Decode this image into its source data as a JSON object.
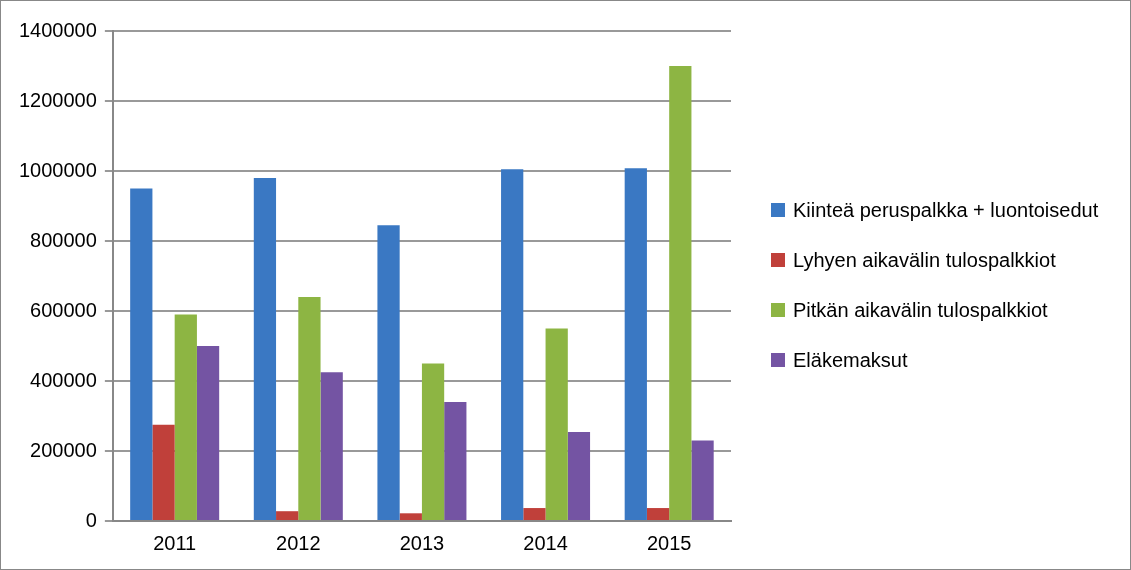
{
  "chart_data": {
    "type": "bar",
    "categories": [
      "2011",
      "2012",
      "2013",
      "2014",
      "2015"
    ],
    "series": [
      {
        "name": "Kiinteä peruspalkka + luontoisedut",
        "color": "#3a78c3",
        "values": [
          950000,
          980000,
          845000,
          1005000,
          1008000
        ]
      },
      {
        "name": "Lyhyen aikavälin tulospalkkiot",
        "color": "#c0403a",
        "values": [
          275000,
          28000,
          22000,
          37000,
          37000
        ]
      },
      {
        "name": "Pitkän aikavälin tulospalkkiot",
        "color": "#8db543",
        "values": [
          590000,
          640000,
          450000,
          550000,
          1300000
        ]
      },
      {
        "name": "Eläkemaksut",
        "color": "#7454a3",
        "values": [
          500000,
          425000,
          340000,
          254000,
          230000
        ]
      }
    ],
    "ylim": [
      0,
      1400000
    ],
    "yticks": [
      0,
      200000,
      400000,
      600000,
      800000,
      1000000,
      1200000,
      1400000
    ],
    "grid": "y",
    "legend": "right"
  }
}
